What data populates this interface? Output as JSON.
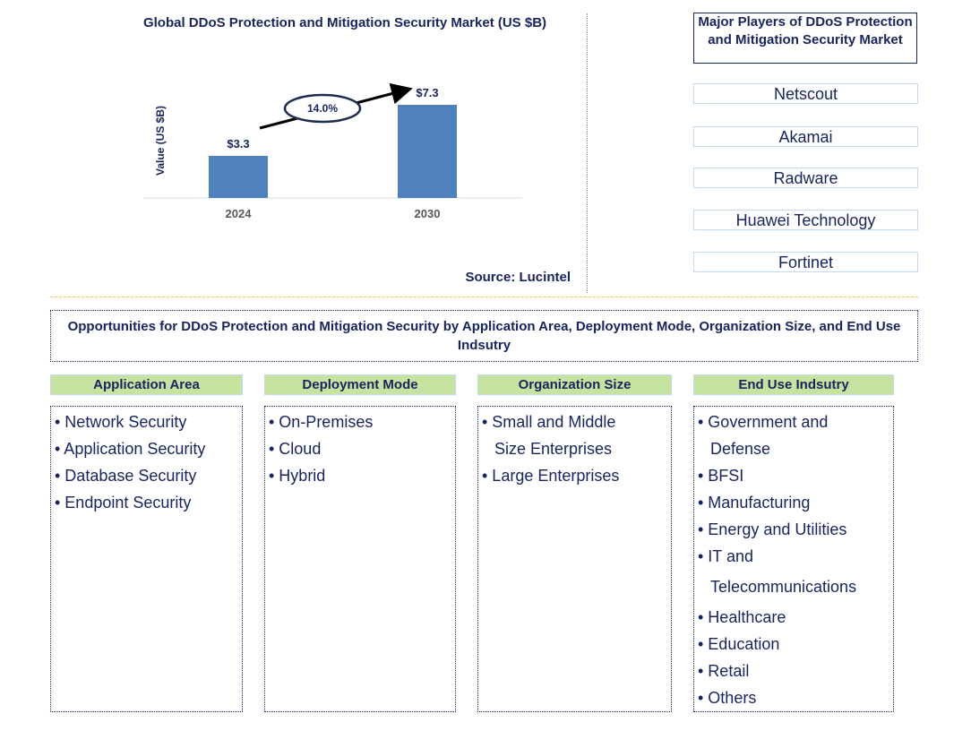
{
  "chart_data": {
    "type": "bar",
    "title": "Global DDoS Protection and Mitigation Security Market (US $B)",
    "ylabel": "Value (US $B)",
    "categories": [
      "2024",
      "2030"
    ],
    "values": [
      3.3,
      7.3
    ],
    "data_labels": [
      "$3.3",
      "$7.3"
    ],
    "cagr_label": "14.0%",
    "bar_color": "#4F81BD",
    "grid": false,
    "source": "Source: Lucintel"
  },
  "players": {
    "title": "Major Players of DDoS Protection and Mitigation Security Market",
    "items": [
      "Netscout",
      "Akamai",
      "Radware",
      "Huawei Technology",
      "Fortinet"
    ]
  },
  "opportunities": {
    "title": "Opportunities for DDoS Protection and Mitigation Security by Application Area, Deployment Mode, Organization Size, and End Use Indsutry",
    "columns": [
      {
        "header": "Application Area",
        "items": [
          "• Network Security",
          "• Application Security",
          "• Database Security",
          "• Endpoint Security"
        ]
      },
      {
        "header": "Deployment Mode",
        "items": [
          "• On-Premises",
          "• Cloud",
          "• Hybrid"
        ]
      },
      {
        "header": "Organization Size",
        "items": [
          "• Small and Middle",
          "Size Enterprises",
          "• Large Enterprises"
        ]
      },
      {
        "header": "End Use Indsutry",
        "items": [
          "• Government and",
          "Defense",
          "• BFSI",
          "• Manufacturing",
          "• Energy and Utilities",
          "• IT and",
          "Telecommunications",
          "• Healthcare",
          "• Education",
          "• Retail",
          "• Others"
        ]
      }
    ]
  }
}
